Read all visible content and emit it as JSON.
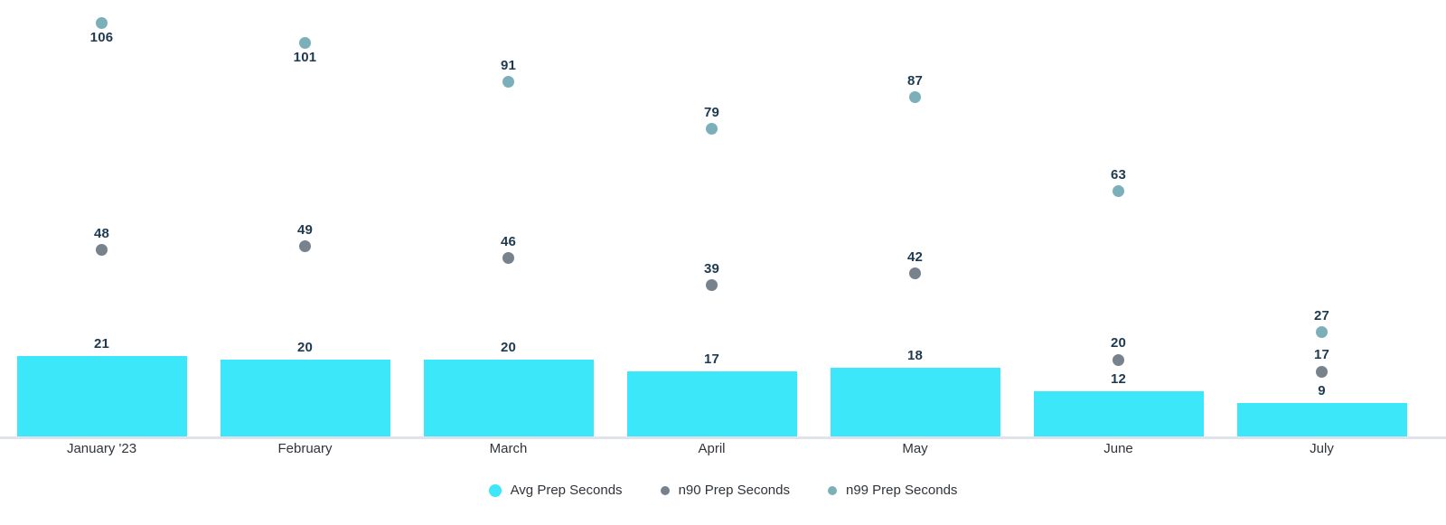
{
  "chart_data": {
    "type": "bar",
    "title": "",
    "xlabel": "",
    "ylabel": "",
    "categories": [
      "January '23",
      "February",
      "March",
      "April",
      "May",
      "June",
      "July"
    ],
    "series": [
      {
        "name": "Avg Prep Seconds",
        "kind": "bar",
        "color": "#3de7fa",
        "values": [
          21,
          20,
          20,
          17,
          18,
          12,
          9
        ]
      },
      {
        "name": "n90 Prep Seconds",
        "kind": "point",
        "color": "#77828d",
        "values": [
          48,
          49,
          46,
          39,
          42,
          20,
          17
        ]
      },
      {
        "name": "n99 Prep Seconds",
        "kind": "point",
        "color": "#7bb0ba",
        "values": [
          106,
          101,
          91,
          79,
          87,
          63,
          27
        ]
      }
    ],
    "ylim": [
      0,
      112
    ],
    "grid": false,
    "value_labels": true,
    "legend_position": "bottom",
    "colors": {
      "value_label": "#1e3a50",
      "category_label": "#2f343a",
      "legend_label": "#2f343a",
      "axis_line": "#e0e2ec",
      "background": "#ffffff"
    }
  }
}
